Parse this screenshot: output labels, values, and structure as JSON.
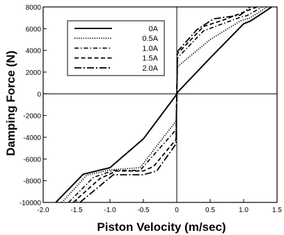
{
  "chart_data": {
    "type": "line",
    "xlabel": "Piston Velocity (m/sec)",
    "ylabel": "Damping Force (N)",
    "xlim": [
      -2.0,
      1.5
    ],
    "ylim": [
      -10000,
      8000
    ],
    "xticks": [
      -2.0,
      -1.5,
      -1.0,
      -0.5,
      0,
      0.5,
      1.0,
      1.5
    ],
    "xtick_labels": [
      "-2.0",
      "-1.5",
      "-1.0",
      "-0.5",
      "0",
      "0.5",
      "1.0",
      "1.5"
    ],
    "yticks": [
      -10000,
      -8000,
      -6000,
      -4000,
      -2000,
      0,
      2000,
      4000,
      6000,
      8000
    ],
    "ytick_labels": [
      "-10000",
      "-8000",
      "-6000",
      "-4000",
      "-2000",
      "0",
      "2000",
      "4000",
      "6000",
      "8000"
    ],
    "grid": false,
    "legend_position": "top-left",
    "series": [
      {
        "name": "0A",
        "dash": "solid",
        "x": [
          -1.81,
          -1.4,
          -1.0,
          -0.5,
          -0.02,
          0,
          0.02,
          0.5,
          1.0,
          1.1,
          1.25,
          1.42
        ],
        "y": [
          -10000,
          -7400,
          -6800,
          -4150,
          -200,
          0,
          200,
          3300,
          6450,
          6700,
          7300,
          8000
        ]
      },
      {
        "name": "0.5A",
        "dash": "dotted",
        "x": [
          -1.72,
          -1.35,
          -1.0,
          -0.55,
          -0.01,
          0,
          0.01,
          0.5,
          0.95,
          1.1,
          1.35
        ],
        "y": [
          -10000,
          -7500,
          -7000,
          -6800,
          -2500,
          0,
          2500,
          5000,
          6700,
          7000,
          8000
        ]
      },
      {
        "name": "1.0A",
        "dash": "dashdot",
        "x": [
          -1.62,
          -1.25,
          -0.95,
          -0.55,
          -0.01,
          0,
          0.01,
          0.4,
          0.95,
          1.05,
          1.28
        ],
        "y": [
          -10000,
          -7700,
          -7050,
          -7050,
          -3300,
          0,
          3300,
          5800,
          7050,
          7200,
          8000
        ]
      },
      {
        "name": "1.5A",
        "dash": "dashed",
        "x": [
          -1.55,
          -1.15,
          -0.9,
          -0.5,
          -0.35,
          -0.01,
          0,
          0.01,
          0.4,
          0.7,
          1.2
        ],
        "y": [
          -10000,
          -7800,
          -7100,
          -7100,
          -6700,
          -4200,
          0,
          3700,
          6200,
          6800,
          8000
        ]
      },
      {
        "name": "2.0A",
        "dash": "longdashdot",
        "x": [
          -1.45,
          -0.95,
          -0.5,
          -0.3,
          -0.01,
          0,
          0.01,
          0.3,
          0.55,
          0.95,
          1.1
        ],
        "y": [
          -10000,
          -7450,
          -7450,
          -7100,
          -4600,
          0,
          3900,
          5900,
          6900,
          7250,
          8000
        ]
      }
    ]
  }
}
